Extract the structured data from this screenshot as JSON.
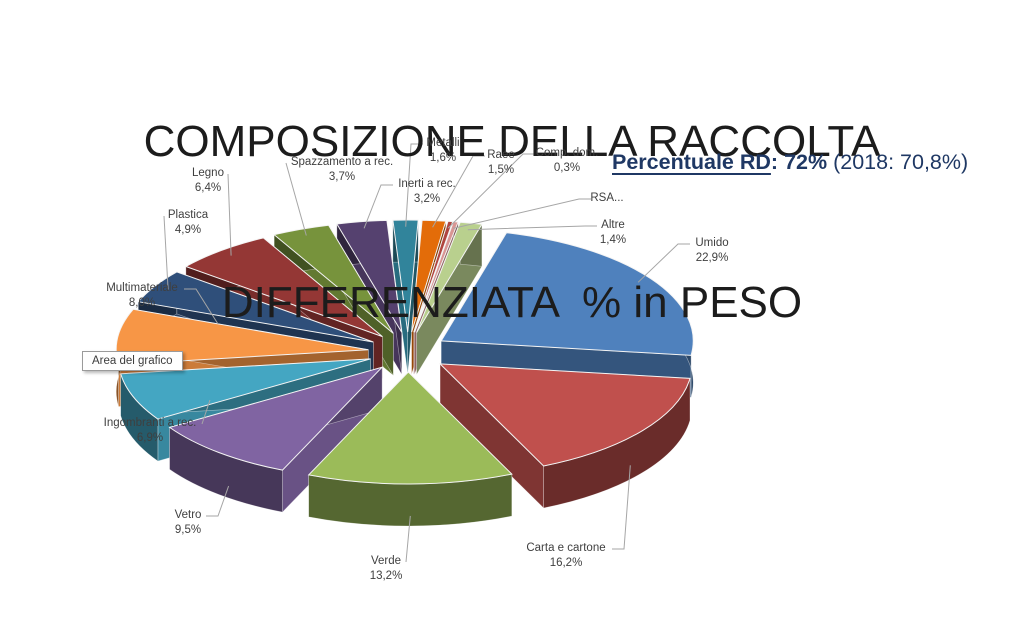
{
  "title": {
    "line1": "COMPOSIZIONE DELLA RACCOLTA",
    "line2": "DIFFERENZIATA  % in PESO"
  },
  "annotation": {
    "label": "Percentuale RD",
    "colon": ":",
    "value": " 72%",
    "note": "(2018: 70,8%)",
    "color": "#1f3864"
  },
  "tooltip": {
    "text": "Area del grafico"
  },
  "chart_data": {
    "type": "pie",
    "style": "3d-exploded",
    "title": "COMPOSIZIONE DELLA RACCOLTA DIFFERENZIATA % in PESO",
    "unit": "% in peso",
    "background": "#ffffff",
    "leader_line_color": "#a6a6a6",
    "label_color": "#3f3f3f",
    "legend": "none",
    "slices": [
      {
        "label": "Umido",
        "value": 22.9,
        "pct": "22,9%",
        "color": "#4f81bd"
      },
      {
        "label": "Carta e cartone",
        "value": 16.2,
        "pct": "16,2%",
        "color": "#c0504d"
      },
      {
        "label": "Verde",
        "value": 13.2,
        "pct": "13,2%",
        "color": "#9bbb59"
      },
      {
        "label": "Vetro",
        "value": 9.5,
        "pct": "9,5%",
        "color": "#8064a2"
      },
      {
        "label": "Ingombranti a rec.",
        "value": 6.9,
        "pct": "6,9%",
        "color": "#44a6c2"
      },
      {
        "label": "Multimateriale",
        "value": 8.0,
        "pct": "8,0%",
        "color": "#f79646"
      },
      {
        "label": "Plastica",
        "value": 4.9,
        "pct": "4,9%",
        "color": "#2f4f7a"
      },
      {
        "label": "Legno",
        "value": 6.4,
        "pct": "6,4%",
        "color": "#943735"
      },
      {
        "label": "Spazzamento a rec.",
        "value": 3.7,
        "pct": "3,7%",
        "color": "#77933c"
      },
      {
        "label": "Inerti a rec.",
        "value": 3.2,
        "pct": "3,2%",
        "color": "#55416f"
      },
      {
        "label": "Metalli",
        "value": 1.6,
        "pct": "1,6%",
        "color": "#31849b"
      },
      {
        "label": "Raee",
        "value": 1.5,
        "pct": "1,5%",
        "color": "#e36c09"
      },
      {
        "label": "Comp. dom.",
        "value": 0.3,
        "pct": "0,3%",
        "color": "#b0453f"
      },
      {
        "label": "RSA...",
        "value": 0.3,
        "pct": "",
        "color": "#d99694"
      },
      {
        "label": "Altre",
        "value": 1.4,
        "pct": "1,4%",
        "color": "#b9d08e"
      }
    ]
  }
}
